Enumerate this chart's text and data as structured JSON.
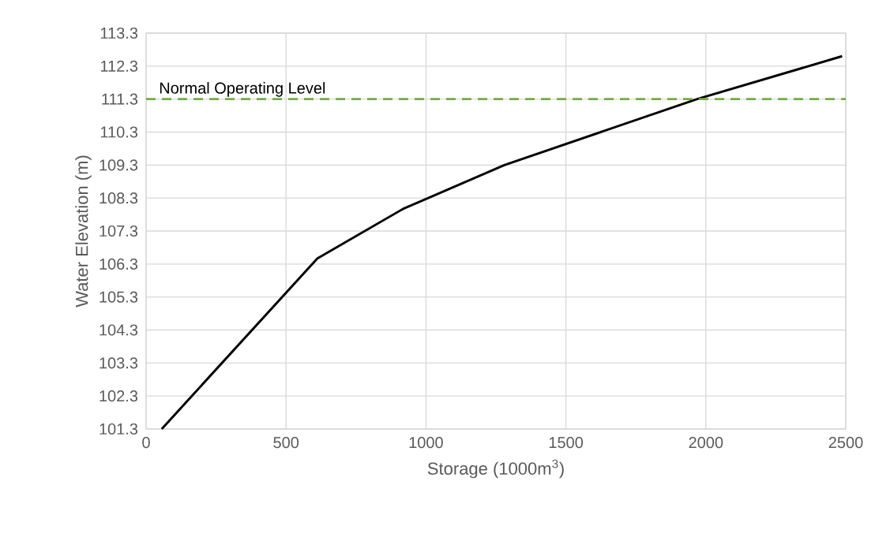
{
  "chart_data": {
    "type": "line",
    "xlabel": "Storage (1000m$^{3}$)",
    "ylabel": "Water Elevation (m)",
    "x": [
      56,
      612,
      918,
      1280,
      1969,
      2487
    ],
    "series": [
      {
        "color": "#000000",
        "values": [
          101.3,
          106.47,
          107.97,
          109.3,
          111.3,
          112.6
        ]
      }
    ],
    "xlim": [
      0,
      2500
    ],
    "xticks": [
      0,
      500,
      1000,
      1500,
      2000,
      2500
    ],
    "ylim": [
      101.3,
      113.3
    ],
    "yticks": [
      101.3,
      102.3,
      103.3,
      104.3,
      105.3,
      106.3,
      107.3,
      108.3,
      109.3,
      110.3,
      111.3,
      112.3,
      113.3
    ],
    "grid": true,
    "marker": "none",
    "line_style": "solid",
    "ref_lines": [
      {
        "axis": "y",
        "value": 111.3,
        "label": "Normal Operating Level",
        "color": "#70ad47",
        "line_style": "dashed"
      }
    ]
  }
}
